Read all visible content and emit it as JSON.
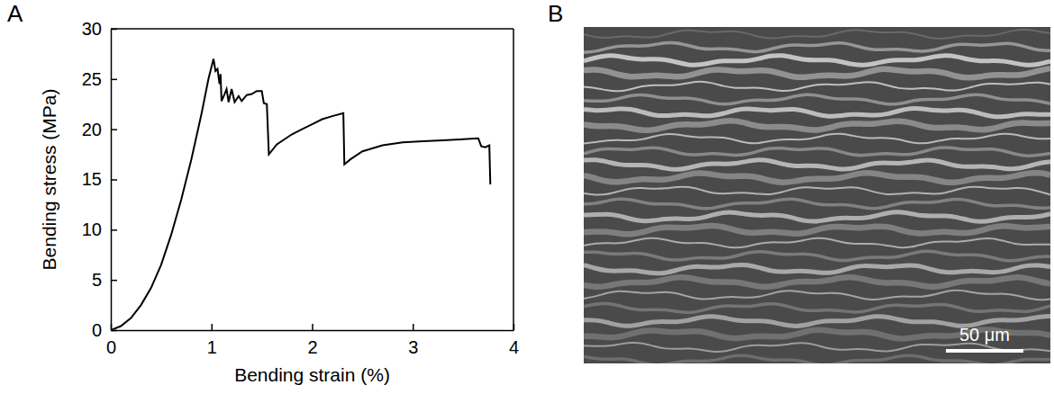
{
  "chart_data": {
    "type": "line",
    "panel_label": "A",
    "x_label": "Bending strain (%)",
    "y_label": "Bending stress (MPa)",
    "color": "#000000",
    "x": [
      0,
      0.1,
      0.2,
      0.3,
      0.4,
      0.5,
      0.6,
      0.7,
      0.8,
      0.9,
      0.97,
      1.02,
      1.04,
      1.06,
      1.08,
      1.09,
      1.1,
      1.13,
      1.15,
      1.17,
      1.2,
      1.23,
      1.27,
      1.3,
      1.35,
      1.4,
      1.45,
      1.5,
      1.52,
      1.55,
      1.57,
      1.65,
      1.8,
      1.9,
      2.0,
      2.1,
      2.2,
      2.31,
      2.32,
      2.38,
      2.5,
      2.7,
      2.9,
      3.1,
      3.3,
      3.5,
      3.65,
      3.68,
      3.72,
      3.76,
      3.77
    ],
    "values": [
      0,
      0.4,
      1.2,
      2.5,
      4.2,
      6.5,
      9.5,
      13,
      17,
      21.5,
      25,
      27,
      25.8,
      26,
      24.5,
      25.5,
      22.8,
      23.5,
      24,
      22.7,
      24,
      22.7,
      23.3,
      22.8,
      23.4,
      23.5,
      23.8,
      23.8,
      22.6,
      22.5,
      17.5,
      18.5,
      19.5,
      20,
      20.5,
      21,
      21.3,
      21.6,
      16.5,
      17,
      17.8,
      18.4,
      18.7,
      18.8,
      18.9,
      19,
      19.1,
      18.3,
      18.2,
      18.4,
      14.5
    ],
    "xlim": [
      0,
      4
    ],
    "xticks": [
      0,
      1,
      2,
      3,
      4
    ],
    "ylim": [
      0,
      30
    ],
    "yticks": [
      0,
      5,
      10,
      15,
      20,
      25,
      30
    ],
    "grid": false
  },
  "image_panel": {
    "panel_label": "B",
    "scale_bar_label": "50 μm"
  }
}
